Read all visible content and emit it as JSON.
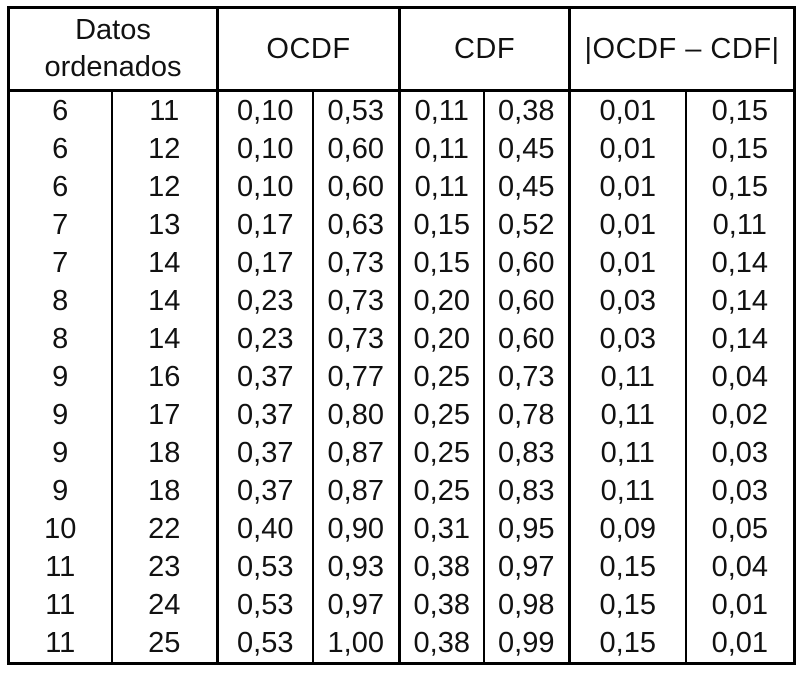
{
  "chart_data": {
    "type": "table",
    "header_groups": [
      "Datos ordenados",
      "OCDF",
      "CDF",
      "|OCDF – CDF|"
    ],
    "columns_per_group": 2,
    "rows": [
      [
        "6",
        "11",
        "0,10",
        "0,53",
        "0,11",
        "0,38",
        "0,01",
        "0,15"
      ],
      [
        "6",
        "12",
        "0,10",
        "0,60",
        "0,11",
        "0,45",
        "0,01",
        "0,15"
      ],
      [
        "6",
        "12",
        "0,10",
        "0,60",
        "0,11",
        "0,45",
        "0,01",
        "0,15"
      ],
      [
        "7",
        "13",
        "0,17",
        "0,63",
        "0,15",
        "0,52",
        "0,01",
        "0,11"
      ],
      [
        "7",
        "14",
        "0,17",
        "0,73",
        "0,15",
        "0,60",
        "0,01",
        "0,14"
      ],
      [
        "8",
        "14",
        "0,23",
        "0,73",
        "0,20",
        "0,60",
        "0,03",
        "0,14"
      ],
      [
        "8",
        "14",
        "0,23",
        "0,73",
        "0,20",
        "0,60",
        "0,03",
        "0,14"
      ],
      [
        "9",
        "16",
        "0,37",
        "0,77",
        "0,25",
        "0,73",
        "0,11",
        "0,04"
      ],
      [
        "9",
        "17",
        "0,37",
        "0,80",
        "0,25",
        "0,78",
        "0,11",
        "0,02"
      ],
      [
        "9",
        "18",
        "0,37",
        "0,87",
        "0,25",
        "0,83",
        "0,11",
        "0,03"
      ],
      [
        "9",
        "18",
        "0,37",
        "0,87",
        "0,25",
        "0,83",
        "0,11",
        "0,03"
      ],
      [
        "10",
        "22",
        "0,40",
        "0,90",
        "0,31",
        "0,95",
        "0,09",
        "0,05"
      ],
      [
        "11",
        "23",
        "0,53",
        "0,93",
        "0,38",
        "0,97",
        "0,15",
        "0,04"
      ],
      [
        "11",
        "24",
        "0,53",
        "0,97",
        "0,38",
        "0,98",
        "0,15",
        "0,01"
      ],
      [
        "11",
        "25",
        "0,53",
        "1,00",
        "0,38",
        "0,99",
        "0,15",
        "0,01"
      ]
    ]
  },
  "colors": {
    "border": "#000000",
    "text": "#111111",
    "background": "#ffffff"
  }
}
